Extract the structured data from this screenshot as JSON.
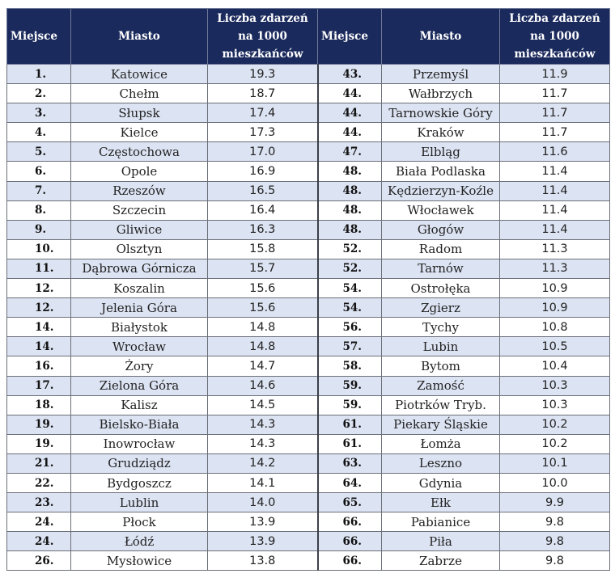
{
  "headers": {
    "rank": "Miejsce",
    "city": "Miasto",
    "value": "Liczba zdarzeń na 1000 mieszkańców"
  },
  "rows": [
    {
      "left": {
        "rank": "1.",
        "city": "Katowice",
        "value": "19.3"
      },
      "right": {
        "rank": "43.",
        "city": "Przemyśl",
        "value": "11.9"
      }
    },
    {
      "left": {
        "rank": "2.",
        "city": "Chełm",
        "value": "18.7"
      },
      "right": {
        "rank": "44.",
        "city": "Wałbrzych",
        "value": "11.7"
      }
    },
    {
      "left": {
        "rank": "3.",
        "city": "Słupsk",
        "value": "17.4"
      },
      "right": {
        "rank": "44.",
        "city": "Tarnowskie Góry",
        "value": "11.7"
      }
    },
    {
      "left": {
        "rank": "4.",
        "city": "Kielce",
        "value": "17.3"
      },
      "right": {
        "rank": "44.",
        "city": "Kraków",
        "value": "11.7"
      }
    },
    {
      "left": {
        "rank": "5.",
        "city": "Częstochowa",
        "value": "17.0"
      },
      "right": {
        "rank": "47.",
        "city": "Elbląg",
        "value": "11.6"
      }
    },
    {
      "left": {
        "rank": "6.",
        "city": "Opole",
        "value": "16.9"
      },
      "right": {
        "rank": "48.",
        "city": "Biała Podlaska",
        "value": "11.4"
      }
    },
    {
      "left": {
        "rank": "7.",
        "city": "Rzeszów",
        "value": "16.5"
      },
      "right": {
        "rank": "48.",
        "city": "Kędzierzyn-Koźle",
        "value": "11.4"
      }
    },
    {
      "left": {
        "rank": "8.",
        "city": "Szczecin",
        "value": "16.4"
      },
      "right": {
        "rank": "48.",
        "city": "Włocławek",
        "value": "11.4"
      }
    },
    {
      "left": {
        "rank": "9.",
        "city": "Gliwice",
        "value": "16.3"
      },
      "right": {
        "rank": "48.",
        "city": "Głogów",
        "value": "11.4"
      }
    },
    {
      "left": {
        "rank": "10.",
        "city": "Olsztyn",
        "value": "15.8"
      },
      "right": {
        "rank": "52.",
        "city": "Radom",
        "value": "11.3"
      }
    },
    {
      "left": {
        "rank": "11.",
        "city": "Dąbrowa Górnicza",
        "value": "15.7"
      },
      "right": {
        "rank": "52.",
        "city": "Tarnów",
        "value": "11.3"
      }
    },
    {
      "left": {
        "rank": "12.",
        "city": "Koszalin",
        "value": "15.6"
      },
      "right": {
        "rank": "54.",
        "city": "Ostrołęka",
        "value": "10.9"
      }
    },
    {
      "left": {
        "rank": "12.",
        "city": "Jelenia Góra",
        "value": "15.6"
      },
      "right": {
        "rank": "54.",
        "city": "Zgierz",
        "value": "10.9"
      }
    },
    {
      "left": {
        "rank": "14.",
        "city": "Białystok",
        "value": "14.8"
      },
      "right": {
        "rank": "56.",
        "city": "Tychy",
        "value": "10.8"
      }
    },
    {
      "left": {
        "rank": "14.",
        "city": "Wrocław",
        "value": "14.8"
      },
      "right": {
        "rank": "57.",
        "city": "Lubin",
        "value": "10.5"
      }
    },
    {
      "left": {
        "rank": "16.",
        "city": "Żory",
        "value": "14.7"
      },
      "right": {
        "rank": "58.",
        "city": "Bytom",
        "value": "10.4"
      }
    },
    {
      "left": {
        "rank": "17.",
        "city": "Zielona Góra",
        "value": "14.6"
      },
      "right": {
        "rank": "59.",
        "city": "Zamość",
        "value": "10.3"
      }
    },
    {
      "left": {
        "rank": "18.",
        "city": "Kalisz",
        "value": "14.5"
      },
      "right": {
        "rank": "59.",
        "city": "Piotrków Tryb.",
        "value": "10.3"
      }
    },
    {
      "left": {
        "rank": "19.",
        "city": "Bielsko-Biała",
        "value": "14.3"
      },
      "right": {
        "rank": "61.",
        "city": "Piekary Śląskie",
        "value": "10.2"
      }
    },
    {
      "left": {
        "rank": "19.",
        "city": "Inowrocław",
        "value": "14.3"
      },
      "right": {
        "rank": "61.",
        "city": "Łomża",
        "value": "10.2"
      }
    },
    {
      "left": {
        "rank": "21.",
        "city": "Grudziądz",
        "value": "14.2"
      },
      "right": {
        "rank": "63.",
        "city": "Leszno",
        "value": "10.1"
      }
    },
    {
      "left": {
        "rank": "22.",
        "city": "Bydgoszcz",
        "value": "14.1"
      },
      "right": {
        "rank": "64.",
        "city": "Gdynia",
        "value": "10.0"
      }
    },
    {
      "left": {
        "rank": "23.",
        "city": "Lublin",
        "value": "14.0"
      },
      "right": {
        "rank": "65.",
        "city": "Ełk",
        "value": "9.9"
      }
    },
    {
      "left": {
        "rank": "24.",
        "city": "Płock",
        "value": "13.9"
      },
      "right": {
        "rank": "66.",
        "city": "Pabianice",
        "value": "9.8"
      }
    },
    {
      "left": {
        "rank": "24.",
        "city": "Łódź",
        "value": "13.9"
      },
      "right": {
        "rank": "66.",
        "city": "Piła",
        "value": "9.8"
      }
    },
    {
      "left": {
        "rank": "26.",
        "city": "Mysłowice",
        "value": "13.8"
      },
      "right": {
        "rank": "66.",
        "city": "Zabrze",
        "value": "9.8"
      }
    }
  ]
}
